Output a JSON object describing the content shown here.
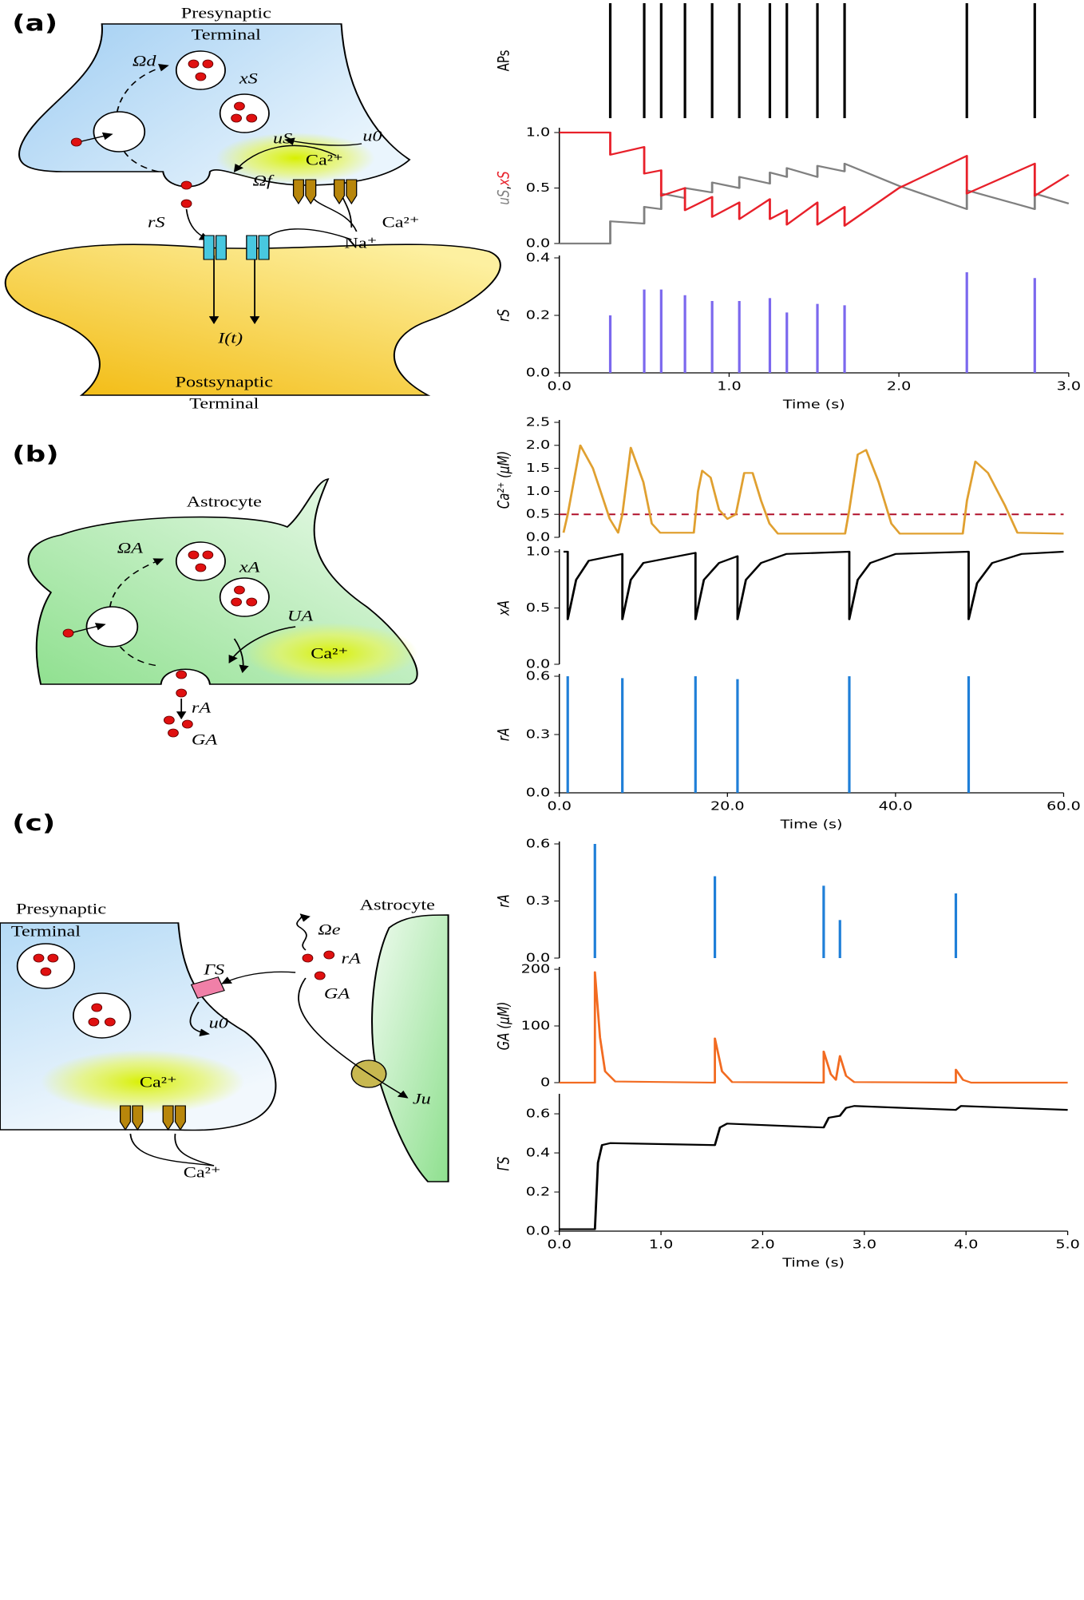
{
  "diagrams": {
    "a": {
      "panel": "(a)",
      "pre": [
        "Presynaptic",
        "Terminal"
      ],
      "post": [
        "Postsynaptic",
        "Terminal"
      ],
      "labels": [
        "Ωd",
        "xS",
        "uS",
        "u0",
        "Ca²⁺",
        "Ωf",
        "rS",
        "Ca²⁺",
        "Na⁺",
        "I(t)"
      ]
    },
    "b": {
      "panel": "(b)",
      "title": "Astrocyte",
      "labels": [
        "ΩA",
        "xA",
        "UA",
        "Ca²⁺",
        "rA",
        "GA"
      ]
    },
    "c": {
      "panel": "(c)",
      "pre": [
        "Presynaptic",
        "Terminal"
      ],
      "astro": "Astrocyte",
      "labels": [
        "Ωe",
        "ΓS",
        "rA",
        "GA",
        "u0",
        "Ca²⁺",
        "Ju",
        "Ca²⁺"
      ]
    }
  },
  "chart_data": [
    {
      "type": "event",
      "ylabel": "APs",
      "color": "#000000",
      "xlim": [
        0,
        3
      ],
      "x": [
        0.3,
        0.5,
        0.6,
        0.74,
        0.9,
        1.06,
        1.24,
        1.34,
        1.52,
        1.68,
        2.4,
        2.8
      ]
    },
    {
      "type": "line",
      "ylabel_sep": ",",
      "xlim": [
        0,
        3
      ],
      "ylim": [
        0,
        1
      ],
      "yticks": [
        {
          "value": 0,
          "label": "0.0"
        },
        {
          "value": 0.5,
          "label": "0.5"
        },
        {
          "value": 1,
          "label": "1.0"
        }
      ],
      "series": [
        {
          "name": "uS",
          "color": "#808080",
          "x": [
            0,
            0.3,
            0.3,
            0.5,
            0.5,
            0.6,
            0.6,
            0.74,
            0.74,
            0.9,
            0.9,
            1.06,
            1.06,
            1.24,
            1.24,
            1.34,
            1.34,
            1.52,
            1.52,
            1.68,
            1.68,
            2.0,
            2.4,
            2.4,
            2.8,
            2.8,
            3.0
          ],
          "values": [
            0,
            0,
            0.2,
            0.18,
            0.33,
            0.31,
            0.45,
            0.41,
            0.5,
            0.46,
            0.55,
            0.5,
            0.6,
            0.54,
            0.64,
            0.6,
            0.68,
            0.6,
            0.7,
            0.65,
            0.72,
            0.52,
            0.31,
            0.48,
            0.31,
            0.45,
            0.36
          ]
        },
        {
          "name": "xS",
          "color": "#e8202a",
          "x": [
            0,
            0.3,
            0.3,
            0.5,
            0.5,
            0.6,
            0.6,
            0.74,
            0.74,
            0.9,
            0.9,
            1.06,
            1.06,
            1.24,
            1.24,
            1.34,
            1.34,
            1.52,
            1.52,
            1.68,
            1.68,
            2.0,
            2.4,
            2.4,
            2.8,
            2.8,
            3.0
          ],
          "values": [
            1,
            1,
            0.8,
            0.87,
            0.63,
            0.66,
            0.43,
            0.5,
            0.3,
            0.42,
            0.24,
            0.37,
            0.22,
            0.4,
            0.22,
            0.3,
            0.17,
            0.37,
            0.17,
            0.33,
            0.16,
            0.5,
            0.79,
            0.45,
            0.72,
            0.43,
            0.62
          ]
        }
      ]
    },
    {
      "type": "stem",
      "ylabel": "rS",
      "color": "#7b68ee",
      "xlim": [
        0,
        3
      ],
      "ylim": [
        0,
        0.4
      ],
      "yticks": [
        {
          "value": 0,
          "label": "0.0"
        },
        {
          "value": 0.2,
          "label": "0.2"
        },
        {
          "value": 0.4,
          "label": "0.4"
        }
      ],
      "xticks": [
        {
          "value": 0,
          "label": "0.0"
        },
        {
          "value": 1,
          "label": "1.0"
        },
        {
          "value": 2,
          "label": "2.0"
        },
        {
          "value": 3,
          "label": "3.0"
        }
      ],
      "xlabel": "Time (s)",
      "x": [
        0.3,
        0.5,
        0.6,
        0.74,
        0.9,
        1.06,
        1.24,
        1.34,
        1.52,
        1.68,
        2.4,
        2.8
      ],
      "values": [
        0.2,
        0.29,
        0.29,
        0.27,
        0.25,
        0.25,
        0.26,
        0.21,
        0.24,
        0.235,
        0.35,
        0.33
      ]
    },
    {
      "type": "line",
      "ylabel": "Ca²⁺ (μM)",
      "xlim": [
        0,
        60
      ],
      "ylim": [
        0,
        2.5
      ],
      "yticks": [
        {
          "value": 0,
          "label": "0.0"
        },
        {
          "value": 0.5,
          "label": "0.5"
        },
        {
          "value": 1,
          "label": "1.0"
        },
        {
          "value": 1.5,
          "label": "1.5"
        },
        {
          "value": 2,
          "label": "2.0"
        },
        {
          "value": 2.5,
          "label": "2.5"
        }
      ],
      "threshold": 0.5,
      "threshold_color": "#b0102a",
      "series": [
        {
          "color": "#e0a030",
          "x": [
            0.5,
            1,
            2.5,
            4,
            6,
            7,
            7.5,
            8.5,
            10,
            11,
            12,
            16,
            16.5,
            17,
            18,
            19,
            20,
            21,
            22,
            23,
            24,
            25,
            26,
            34,
            34.5,
            35.5,
            36.5,
            38,
            39.5,
            40.5,
            48,
            48.5,
            49.5,
            51,
            53,
            54.5,
            60
          ],
          "values": [
            0.1,
            0.5,
            2.0,
            1.5,
            0.4,
            0.1,
            0.5,
            1.95,
            1.2,
            0.3,
            0.1,
            0.1,
            1.0,
            1.45,
            1.3,
            0.6,
            0.4,
            0.5,
            1.4,
            1.4,
            0.8,
            0.3,
            0.08,
            0.08,
            0.6,
            1.8,
            1.9,
            1.2,
            0.3,
            0.08,
            0.08,
            0.8,
            1.65,
            1.4,
            0.7,
            0.1,
            0.08
          ]
        }
      ]
    },
    {
      "type": "line",
      "ylabel": "xA",
      "xlim": [
        0,
        60
      ],
      "ylim": [
        0,
        1
      ],
      "yticks": [
        {
          "value": 0,
          "label": "0.0"
        },
        {
          "value": 0.5,
          "label": "0.5"
        },
        {
          "value": 1,
          "label": "1.0"
        }
      ],
      "series": [
        {
          "color": "#000000",
          "x": [
            0.5,
            1,
            1,
            2,
            3.5,
            7.5,
            7.5,
            8.5,
            10,
            16.2,
            16.2,
            17.2,
            19,
            21.2,
            21.2,
            22.2,
            24,
            27,
            34.5,
            34.5,
            35.5,
            37,
            40,
            48.7,
            48.7,
            49.7,
            51.5,
            55,
            60
          ],
          "values": [
            1,
            1,
            0.4,
            0.75,
            0.92,
            0.98,
            0.4,
            0.75,
            0.9,
            0.99,
            0.4,
            0.75,
            0.9,
            0.96,
            0.4,
            0.75,
            0.9,
            0.98,
            1,
            0.4,
            0.75,
            0.9,
            0.98,
            1,
            0.4,
            0.72,
            0.9,
            0.98,
            1
          ]
        }
      ]
    },
    {
      "type": "stem",
      "ylabel": "rA",
      "color": "#1f7fd8",
      "xlim": [
        0,
        60
      ],
      "ylim": [
        0,
        0.6
      ],
      "yticks": [
        {
          "value": 0,
          "label": "0.0"
        },
        {
          "value": 0.3,
          "label": "0.3"
        },
        {
          "value": 0.6,
          "label": "0.6"
        }
      ],
      "xticks": [
        {
          "value": 0,
          "label": "0.0"
        },
        {
          "value": 20,
          "label": "20.0"
        },
        {
          "value": 40,
          "label": "40.0"
        },
        {
          "value": 60,
          "label": "60.0"
        }
      ],
      "xlabel": "Time (s)",
      "x": [
        1,
        7.5,
        16.2,
        21.2,
        34.5,
        48.7
      ],
      "values": [
        0.6,
        0.59,
        0.6,
        0.585,
        0.6,
        0.6
      ]
    },
    {
      "type": "stem",
      "ylabel": "rA",
      "color": "#1f7fd8",
      "xlim": [
        0,
        5
      ],
      "ylim": [
        0,
        0.6
      ],
      "yticks": [
        {
          "value": 0,
          "label": "0.0"
        },
        {
          "value": 0.3,
          "label": "0.3"
        },
        {
          "value": 0.6,
          "label": "0.6"
        }
      ],
      "x": [
        0.35,
        1.53,
        2.6,
        2.76,
        3.9
      ],
      "values": [
        0.6,
        0.43,
        0.38,
        0.2,
        0.34
      ]
    },
    {
      "type": "line",
      "ylabel": "GA (μM)",
      "xlim": [
        0,
        5
      ],
      "ylim": [
        0,
        200
      ],
      "yticks": [
        0,
        100,
        200
      ],
      "series": [
        {
          "color": "#f26b21",
          "x": [
            0,
            0.35,
            0.35,
            0.4,
            0.45,
            0.55,
            1.53,
            1.53,
            1.6,
            1.7,
            2.6,
            2.6,
            2.67,
            2.72,
            2.76,
            2.82,
            2.9,
            3.9,
            3.9,
            3.97,
            4.05,
            5
          ],
          "values": [
            0,
            0,
            195,
            80,
            20,
            2,
            0,
            78,
            20,
            1,
            0,
            55,
            15,
            5,
            47,
            12,
            1,
            0,
            23,
            5,
            0,
            0
          ]
        }
      ]
    },
    {
      "type": "line",
      "ylabel": "ΓS",
      "xlim": [
        0,
        5
      ],
      "ylim": [
        0,
        0.69
      ],
      "yticks": [
        {
          "value": 0,
          "label": "0.0"
        },
        {
          "value": 0.2,
          "label": "0.2"
        },
        {
          "value": 0.4,
          "label": "0.4"
        },
        {
          "value": 0.6,
          "label": "0.6"
        }
      ],
      "xticks": [
        {
          "value": 0,
          "label": "0.0"
        },
        {
          "value": 1,
          "label": "1.0"
        },
        {
          "value": 2,
          "label": "2.0"
        },
        {
          "value": 3,
          "label": "3.0"
        },
        {
          "value": 4,
          "label": "4.0"
        },
        {
          "value": 5,
          "label": "5.0"
        }
      ],
      "xlabel": "Time (s)",
      "series": [
        {
          "color": "#000000",
          "x": [
            0,
            0.35,
            0.38,
            0.42,
            0.5,
            1.53,
            1.58,
            1.65,
            2.6,
            2.65,
            2.76,
            2.82,
            2.9,
            3.9,
            3.95,
            5
          ],
          "values": [
            0.01,
            0.01,
            0.35,
            0.44,
            0.45,
            0.44,
            0.53,
            0.55,
            0.53,
            0.58,
            0.59,
            0.63,
            0.64,
            0.62,
            0.64,
            0.62
          ]
        }
      ]
    }
  ]
}
